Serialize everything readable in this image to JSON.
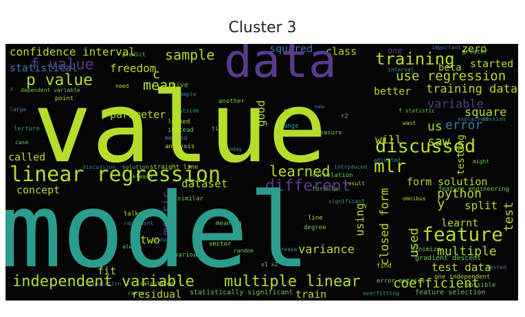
{
  "title": "Cluster 3",
  "palette": {
    "background": "#050505",
    "yellow_green": "#b5de2b",
    "teal": "#2a9d8f",
    "purple": "#5b3a8e",
    "green": "#6ece58",
    "blue": "#3e7bb0"
  },
  "words": {
    "value": "value",
    "model": "model",
    "data": "data",
    "linear_regression": "linear regression",
    "independent_variable": "independent variable",
    "multiple_linear": "multiple linear",
    "feature": "feature",
    "discussed": "discussed",
    "training": "training",
    "p_value": "p value",
    "f_value": "f value",
    "confidence_interval": "confidence interval",
    "sample": "sample",
    "mean": "mean",
    "freedom": "freedom",
    "statistical": "statistical",
    "use_regression": "use regression",
    "training_data": "training data",
    "better": "better",
    "started": "started",
    "beta": "beta",
    "zero": "zero",
    "class": "class",
    "squared": "squared",
    "variable": "variable",
    "error": "error",
    "square": "square",
    "us": "us",
    "saw": "saw",
    "will": "will",
    "testing": "testing",
    "mlr": "mlr",
    "learned": "learned",
    "different": "different",
    "dataset": "dataset",
    "concept": "concept",
    "called": "called",
    "parameter": "parameter",
    "metric": "metric",
    "using": "using",
    "used": "used",
    "closed_form": "closed form",
    "form_solution": "form solution",
    "python": "python",
    "y": "y",
    "split": "split",
    "test": "test",
    "learnt": "learnt",
    "multiple": "multiple",
    "variance": "variance",
    "test_data": "test data",
    "coefficient": "coefficient",
    "two": "two",
    "fit": "fit",
    "train": "train",
    "good": "good",
    "residual": "residual",
    "gradient_descent": "gradient descent",
    "one_independent": "one independent",
    "feature_selection": "feature selection",
    "feature_engineering": "feature engineering",
    "dependent_variable": "dependent variable",
    "error_metrics": "error metrics",
    "statistically_significant": "statistically significant",
    "analysis": "analysis",
    "method": "method",
    "instead": "instead",
    "looked": "looked",
    "outside": "outside",
    "lecture": "lecture",
    "point": "point",
    "another": "another",
    "recap": "recap",
    "r2": "r2",
    "change": "change",
    "measure": "measure",
    "f_statistic": "f statistic",
    "explained": "explained",
    "session": "session",
    "correlation": "correlation",
    "introduced": "introduced",
    "result": "result",
    "formula": "formula",
    "similar": "similar",
    "talked": "talked",
    "represent": "represent",
    "always": "always",
    "vector": "vector",
    "random": "random",
    "meaning": "meaning",
    "line": "line",
    "degree": "degree",
    "increase": "increase",
    "find": "find",
    "minimize": "minimize",
    "possible": "possible",
    "various": "various",
    "population": "population",
    "ratio": "ratio",
    "discussion": "discussion",
    "solution": "solution",
    "straight_line": "straight line",
    "case": "case",
    "large": "large",
    "need": "need",
    "give": "give",
    "example": "example",
    "today": "today",
    "new": "new",
    "want": "want",
    "might": "might",
    "greater": "greater",
    "important": "important",
    "interval": "interval",
    "x": "x",
    "x1_x2": "x1 x2",
    "omnibus": "omnibus",
    "anova": "anova",
    "adjusted": "adjusted",
    "sklearn": "sklearn",
    "overfitting": "overfitting",
    "significant": "significant",
    "calculated": "calculated",
    "one": "one",
    "c": "c",
    "time": "time",
    "etc": "etc",
    "predict": "predict",
    "tested": "tested",
    "level": "level"
  }
}
